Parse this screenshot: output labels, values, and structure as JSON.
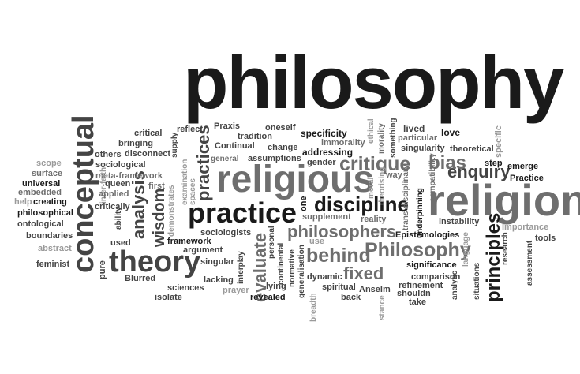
{
  "words": {
    "philosophy": "philosophy",
    "religious": "religious",
    "religion": "religion",
    "practice": "practice",
    "theory": "theory",
    "conceptual": "conceptual",
    "discipline": "discipline",
    "philosophers": "philosophers",
    "Philosophy": "Philosophy",
    "behind": "behind",
    "fixed": "fixed",
    "enquiry": "enquiry",
    "critique": "critique",
    "bias": "bias",
    "principles": "principles",
    "evaluate": "evaluate",
    "practices": "practices",
    "analysis": "analysis",
    "wisdom": "wisdom",
    "critical": "critical",
    "reflect": "reflect",
    "Praxis": "Praxis",
    "oneself": "oneself",
    "specificity": "specificity",
    "ethical": "ethical",
    "lived": "lived",
    "love": "love",
    "bringing": "bringing",
    "tradition": "tradition",
    "immorality": "immorality",
    "particular": "particular",
    "others": "others",
    "disconnect": "disconnect",
    "supply": "supply",
    "Continual": "Continual",
    "change": "change",
    "addressing": "addressing",
    "morality": "morality",
    "singularity": "singularity",
    "theoretical": "theoretical",
    "specific": "specific",
    "sociological": "sociological",
    "general": "general",
    "assumptions": "assumptions",
    "something": "something",
    "step": "step",
    "scope": "scope",
    "gender": "gender",
    "emerge": "emerge",
    "surface": "surface",
    "meta_framework": "meta-framework",
    "examination": "examination",
    "spaces": "spaces",
    "way": "way",
    "Practice": "Practice",
    "universal": "universal",
    "inter_faith": "inter-faith",
    "queen": "queen",
    "first": "first",
    "moral": "moral",
    "embedded": "embedded",
    "applied": "applied",
    "one": "one",
    "theorising": "theorising",
    "help": "help",
    "creating": "creating",
    "demonstrates": "demonstrates",
    "trans_disciplinary": "trans-disciplinary",
    "compatibility": "compatibility",
    "critically": "critically",
    "supplement": "supplement",
    "reality": "reality",
    "underpinning": "underpinning",
    "philosophical": "philosophical",
    "ability": "ability",
    "instability": "instability",
    "ontological": "ontological",
    "sociologists": "sociologists",
    "personal": "personal",
    "Importance": "Importance",
    "framework": "framework",
    "Epistemologies": "Epistemologies",
    "tools": "tools",
    "boundaries": "boundaries",
    "argument": "argument",
    "use": "use",
    "language": "language",
    "used": "used",
    "continental": "continental",
    "research": "research",
    "abstract": "abstract",
    "singular": "singular",
    "interplay": "interplay",
    "normative": "normative",
    "significance": "significance",
    "assessment": "assessment",
    "feminist": "feminist",
    "pure": "pure",
    "generalisation": "generalisation",
    "situations": "situations",
    "Blurred": "Blurred",
    "lacking": "lacking",
    "dynamic": "dynamic",
    "comparison": "comparison",
    "analytic": "analytic",
    "sciences": "sciences",
    "lying": "lying",
    "spiritual": "spiritual",
    "refinement": "refinement",
    "prayer": "prayer",
    "Anselm": "Anselm",
    "shouldn": "shouldn",
    "isolate": "isolate",
    "revealed": "revealed",
    "back": "back",
    "take": "take",
    "breadth": "breadth",
    "stance": "stance"
  }
}
